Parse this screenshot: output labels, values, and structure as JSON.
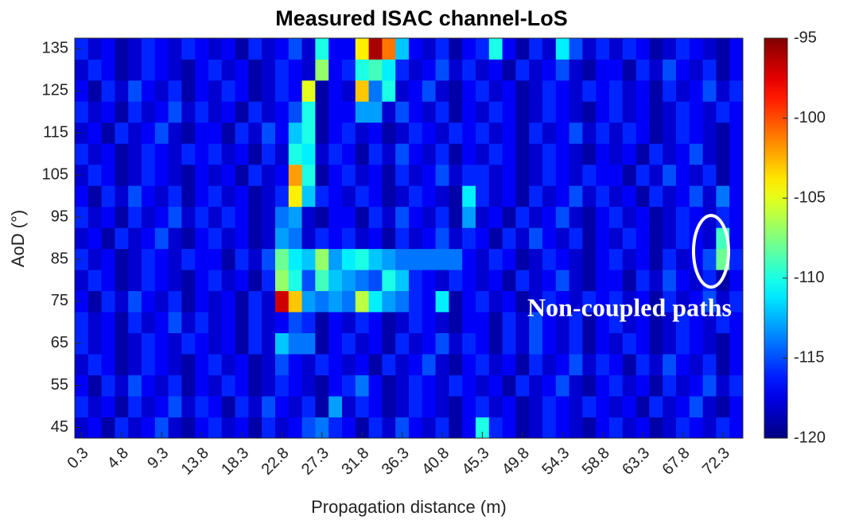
{
  "chart_data": {
    "type": "heatmap",
    "title": "Measured ISAC channel-LoS",
    "x_label": "Propagation distance (m)",
    "y_label": "AoD (°)",
    "annotation": "Non-coupled paths",
    "colormap": "jet",
    "x": [
      0.3,
      1.8,
      3.3,
      4.8,
      6.3,
      7.8,
      9.3,
      10.8,
      12.3,
      13.8,
      15.3,
      16.8,
      18.3,
      19.8,
      21.3,
      22.8,
      24.3,
      25.8,
      27.3,
      28.8,
      30.3,
      31.8,
      33.3,
      34.8,
      36.3,
      37.8,
      39.3,
      40.8,
      42.3,
      43.8,
      45.3,
      46.8,
      48.3,
      49.8,
      51.3,
      52.8,
      54.3,
      55.8,
      57.3,
      58.8,
      60.3,
      61.8,
      63.3,
      64.8,
      66.3,
      67.8,
      69.3,
      70.8,
      72.3,
      73.8
    ],
    "y": [
      45,
      50,
      55,
      60,
      65,
      70,
      75,
      80,
      85,
      90,
      95,
      100,
      105,
      110,
      115,
      120,
      125,
      130,
      135
    ],
    "xlim": [
      -0.45,
      74.55
    ],
    "ylim": [
      42.5,
      137.5
    ],
    "xticks": [
      0.3,
      4.8,
      9.3,
      13.8,
      18.3,
      22.8,
      27.3,
      31.8,
      36.3,
      40.8,
      45.3,
      49.8,
      54.3,
      58.8,
      63.3,
      67.8,
      72.3
    ],
    "yticks": [
      45,
      55,
      65,
      75,
      85,
      95,
      105,
      115,
      125,
      135
    ],
    "clim": [
      -120,
      -95
    ],
    "cticks": [
      -95,
      -100,
      -105,
      -110,
      -115,
      -120
    ],
    "values": [
      [
        -118,
        -117,
        -119,
        -116,
        -118,
        -117,
        -115,
        -118,
        -119,
        -117,
        -116,
        -118,
        -117,
        -119,
        -116,
        -118,
        -117,
        -115,
        -114,
        -116,
        -117,
        -119,
        -116,
        -118,
        -115,
        -117,
        -118,
        -116,
        -119,
        -117,
        -110,
        -116,
        -117,
        -119,
        -118,
        -116,
        -117,
        -118,
        -119,
        -117,
        -116,
        -118,
        -117,
        -119,
        -118,
        -116,
        -117,
        -118,
        -116,
        -117
      ],
      [
        -116,
        -118,
        -117,
        -119,
        -116,
        -118,
        -117,
        -115,
        -118,
        -116,
        -117,
        -119,
        -116,
        -118,
        -115,
        -117,
        -118,
        -116,
        -119,
        -113,
        -118,
        -116,
        -117,
        -119,
        -118,
        -116,
        -117,
        -118,
        -119,
        -117,
        -116,
        -118,
        -117,
        -119,
        -118,
        -116,
        -117,
        -118,
        -116,
        -117,
        -118,
        -117,
        -119,
        -116,
        -118,
        -117,
        -115,
        -118,
        -119,
        -117
      ],
      [
        -117,
        -119,
        -116,
        -118,
        -115,
        -117,
        -118,
        -116,
        -119,
        -117,
        -118,
        -116,
        -117,
        -119,
        -118,
        -116,
        -117,
        -118,
        -119,
        -117,
        -116,
        -114,
        -117,
        -119,
        -118,
        -116,
        -117,
        -118,
        -116,
        -117,
        -118,
        -117,
        -119,
        -116,
        -118,
        -117,
        -115,
        -118,
        -119,
        -117,
        -116,
        -118,
        -117,
        -119,
        -116,
        -118,
        -117,
        -115,
        -118,
        -116
      ],
      [
        -118,
        -116,
        -117,
        -119,
        -118,
        -116,
        -117,
        -118,
        -119,
        -117,
        -116,
        -118,
        -117,
        -119,
        -118,
        -115,
        -117,
        -118,
        -116,
        -117,
        -118,
        -117,
        -119,
        -116,
        -118,
        -117,
        -115,
        -118,
        -119,
        -117,
        -116,
        -118,
        -117,
        -119,
        -116,
        -118,
        -117,
        -115,
        -118,
        -116,
        -117,
        -119,
        -116,
        -118,
        -115,
        -117,
        -118,
        -116,
        -119,
        -117
      ],
      [
        -116,
        -118,
        -117,
        -119,
        -118,
        -116,
        -117,
        -118,
        -116,
        -117,
        -118,
        -117,
        -119,
        -116,
        -118,
        -112,
        -114,
        -114,
        -119,
        -117,
        -116,
        -118,
        -117,
        -119,
        -116,
        -118,
        -117,
        -115,
        -118,
        -116,
        -117,
        -119,
        -116,
        -118,
        -115,
        -117,
        -118,
        -116,
        -119,
        -117,
        -118,
        -116,
        -117,
        -119,
        -118,
        -116,
        -117,
        -118,
        -119,
        -117
      ],
      [
        -116,
        -118,
        -117,
        -119,
        -116,
        -118,
        -117,
        -115,
        -118,
        -116,
        -118,
        -117,
        -119,
        -116,
        -118,
        -117,
        -115,
        -116,
        -119,
        -117,
        -118,
        -116,
        -117,
        -119,
        -118,
        -116,
        -117,
        -118,
        -119,
        -117,
        -117,
        -119,
        -116,
        -118,
        -115,
        -117,
        -118,
        -116,
        -119,
        -117,
        -116,
        -118,
        -117,
        -119,
        -118,
        -116,
        -117,
        -118,
        -116,
        -117
      ],
      [
        -117,
        -119,
        -116,
        -118,
        -115,
        -117,
        -118,
        -116,
        -119,
        -117,
        -118,
        -117,
        -119,
        -116,
        -118,
        -97,
        -103,
        -113,
        -114,
        -113,
        -114,
        -106,
        -111,
        -113,
        -114,
        -116,
        -117,
        -111,
        -119,
        -117,
        -116,
        -118,
        -117,
        -119,
        -118,
        -116,
        -117,
        -118,
        -116,
        -117,
        -116,
        -118,
        -117,
        -119,
        -116,
        -118,
        -117,
        -115,
        -118,
        -116
      ],
      [
        -118,
        -116,
        -117,
        -119,
        -118,
        -116,
        -117,
        -118,
        -119,
        -117,
        -116,
        -118,
        -117,
        -119,
        -116,
        -107,
        -110,
        -115,
        -109,
        -112,
        -113,
        -114,
        -115,
        -110,
        -112,
        -116,
        -117,
        -118,
        -116,
        -117,
        -118,
        -117,
        -119,
        -116,
        -118,
        -117,
        -115,
        -118,
        -119,
        -117,
        -117,
        -119,
        -116,
        -118,
        -115,
        -117,
        -118,
        -116,
        -119,
        -117
      ],
      [
        -116,
        -118,
        -117,
        -119,
        -118,
        -116,
        -117,
        -118,
        -116,
        -117,
        -117,
        -119,
        -116,
        -118,
        -115,
        -108,
        -111,
        -112,
        -107,
        -113,
        -111,
        -110,
        -112,
        -113,
        -114,
        -114,
        -114,
        -114,
        -114,
        -117,
        -118,
        -116,
        -117,
        -119,
        -118,
        -116,
        -117,
        -118,
        -119,
        -117,
        -116,
        -118,
        -117,
        -119,
        -116,
        -118,
        -117,
        -115,
        -108,
        -116
      ],
      [
        -118,
        -117,
        -119,
        -116,
        -118,
        -117,
        -115,
        -118,
        -119,
        -117,
        -116,
        -118,
        -117,
        -119,
        -118,
        -113,
        -114,
        -118,
        -116,
        -117,
        -116,
        -118,
        -117,
        -119,
        -116,
        -118,
        -117,
        -115,
        -118,
        -116,
        -117,
        -119,
        -116,
        -118,
        -115,
        -117,
        -118,
        -116,
        -119,
        -117,
        -118,
        -116,
        -117,
        -119,
        -118,
        -116,
        -117,
        -118,
        -109,
        -117
      ],
      [
        -116,
        -118,
        -117,
        -119,
        -116,
        -118,
        -117,
        -115,
        -118,
        -116,
        -118,
        -116,
        -117,
        -119,
        -118,
        -114,
        -113,
        -118,
        -119,
        -117,
        -117,
        -119,
        -116,
        -118,
        -115,
        -117,
        -118,
        -116,
        -119,
        -113,
        -118,
        -117,
        -119,
        -116,
        -118,
        -117,
        -115,
        -118,
        -119,
        -117,
        -116,
        -118,
        -117,
        -119,
        -118,
        -116,
        -117,
        -118,
        -116,
        -117
      ],
      [
        -117,
        -119,
        -116,
        -118,
        -115,
        -117,
        -118,
        -116,
        -119,
        -117,
        -116,
        -118,
        -117,
        -119,
        -118,
        -116,
        -104,
        -112,
        -116,
        -117,
        -118,
        -116,
        -117,
        -119,
        -118,
        -116,
        -117,
        -118,
        -119,
        -111,
        -116,
        -118,
        -117,
        -119,
        -116,
        -118,
        -117,
        -115,
        -118,
        -116,
        -118,
        -117,
        -119,
        -116,
        -118,
        -117,
        -115,
        -118,
        -114,
        -117
      ],
      [
        -118,
        -116,
        -117,
        -119,
        -118,
        -116,
        -117,
        -118,
        -119,
        -117,
        -118,
        -117,
        -119,
        -116,
        -118,
        -117,
        -102,
        -110,
        -119,
        -117,
        -116,
        -118,
        -117,
        -119,
        -116,
        -118,
        -117,
        -115,
        -118,
        -116,
        -116,
        -118,
        -117,
        -119,
        -118,
        -116,
        -117,
        -118,
        -116,
        -117,
        -117,
        -119,
        -116,
        -118,
        -115,
        -117,
        -118,
        -116,
        -119,
        -117
      ],
      [
        -116,
        -118,
        -117,
        -119,
        -118,
        -116,
        -117,
        -118,
        -116,
        -117,
        -116,
        -118,
        -117,
        -119,
        -116,
        -118,
        -110,
        -111,
        -118,
        -116,
        -117,
        -119,
        -116,
        -118,
        -115,
        -117,
        -118,
        -116,
        -119,
        -117,
        -118,
        -116,
        -117,
        -119,
        -118,
        -116,
        -117,
        -118,
        -119,
        -117,
        -118,
        -117,
        -119,
        -116,
        -118,
        -117,
        -115,
        -118,
        -119,
        -117
      ],
      [
        -118,
        -117,
        -119,
        -116,
        -118,
        -117,
        -115,
        -118,
        -119,
        -117,
        -117,
        -119,
        -116,
        -118,
        -115,
        -117,
        -112,
        -110,
        -119,
        -117,
        -116,
        -118,
        -117,
        -119,
        -118,
        -116,
        -117,
        -118,
        -116,
        -117,
        -116,
        -118,
        -117,
        -119,
        -116,
        -118,
        -117,
        -115,
        -118,
        -116,
        -118,
        -116,
        -117,
        -119,
        -118,
        -116,
        -117,
        -118,
        -119,
        -117
      ],
      [
        -116,
        -118,
        -117,
        -119,
        -116,
        -118,
        -117,
        -115,
        -118,
        -116,
        -118,
        -117,
        -119,
        -116,
        -118,
        -117,
        -115,
        -110,
        -119,
        -117,
        -117,
        -113,
        -113,
        -118,
        -115,
        -117,
        -118,
        -116,
        -119,
        -117,
        -118,
        -116,
        -117,
        -119,
        -118,
        -116,
        -117,
        -118,
        -119,
        -117,
        -116,
        -118,
        -117,
        -119,
        -118,
        -116,
        -117,
        -118,
        -116,
        -117
      ],
      [
        -117,
        -119,
        -116,
        -118,
        -115,
        -117,
        -118,
        -116,
        -119,
        -117,
        -118,
        -116,
        -117,
        -119,
        -118,
        -116,
        -117,
        -105,
        -119,
        -117,
        -118,
        -103,
        -114,
        -110,
        -118,
        -117,
        -115,
        -118,
        -119,
        -117,
        -116,
        -118,
        -117,
        -119,
        -118,
        -116,
        -117,
        -118,
        -116,
        -117,
        -116,
        -118,
        -117,
        -119,
        -116,
        -118,
        -117,
        -115,
        -118,
        -116
      ],
      [
        -118,
        -116,
        -117,
        -119,
        -118,
        -116,
        -117,
        -118,
        -119,
        -117,
        -116,
        -118,
        -117,
        -119,
        -118,
        -116,
        -117,
        -118,
        -107,
        -117,
        -116,
        -110,
        -109,
        -111,
        -116,
        -118,
        -117,
        -115,
        -118,
        -116,
        -118,
        -117,
        -119,
        -116,
        -118,
        -117,
        -115,
        -118,
        -119,
        -117,
        -117,
        -119,
        -116,
        -118,
        -115,
        -117,
        -118,
        -116,
        -119,
        -117
      ],
      [
        -116,
        -118,
        -117,
        -119,
        -118,
        -116,
        -117,
        -118,
        -116,
        -117,
        -118,
        -117,
        -119,
        -116,
        -118,
        -117,
        -115,
        -118,
        -110,
        -117,
        -117,
        -104,
        -96,
        -101,
        -112,
        -117,
        -118,
        -116,
        -119,
        -117,
        -116,
        -110,
        -117,
        -119,
        -116,
        -118,
        -111,
        -115,
        -118,
        -116,
        -118,
        -116,
        -117,
        -119,
        -118,
        -116,
        -117,
        -118,
        -119,
        -117
      ]
    ]
  }
}
